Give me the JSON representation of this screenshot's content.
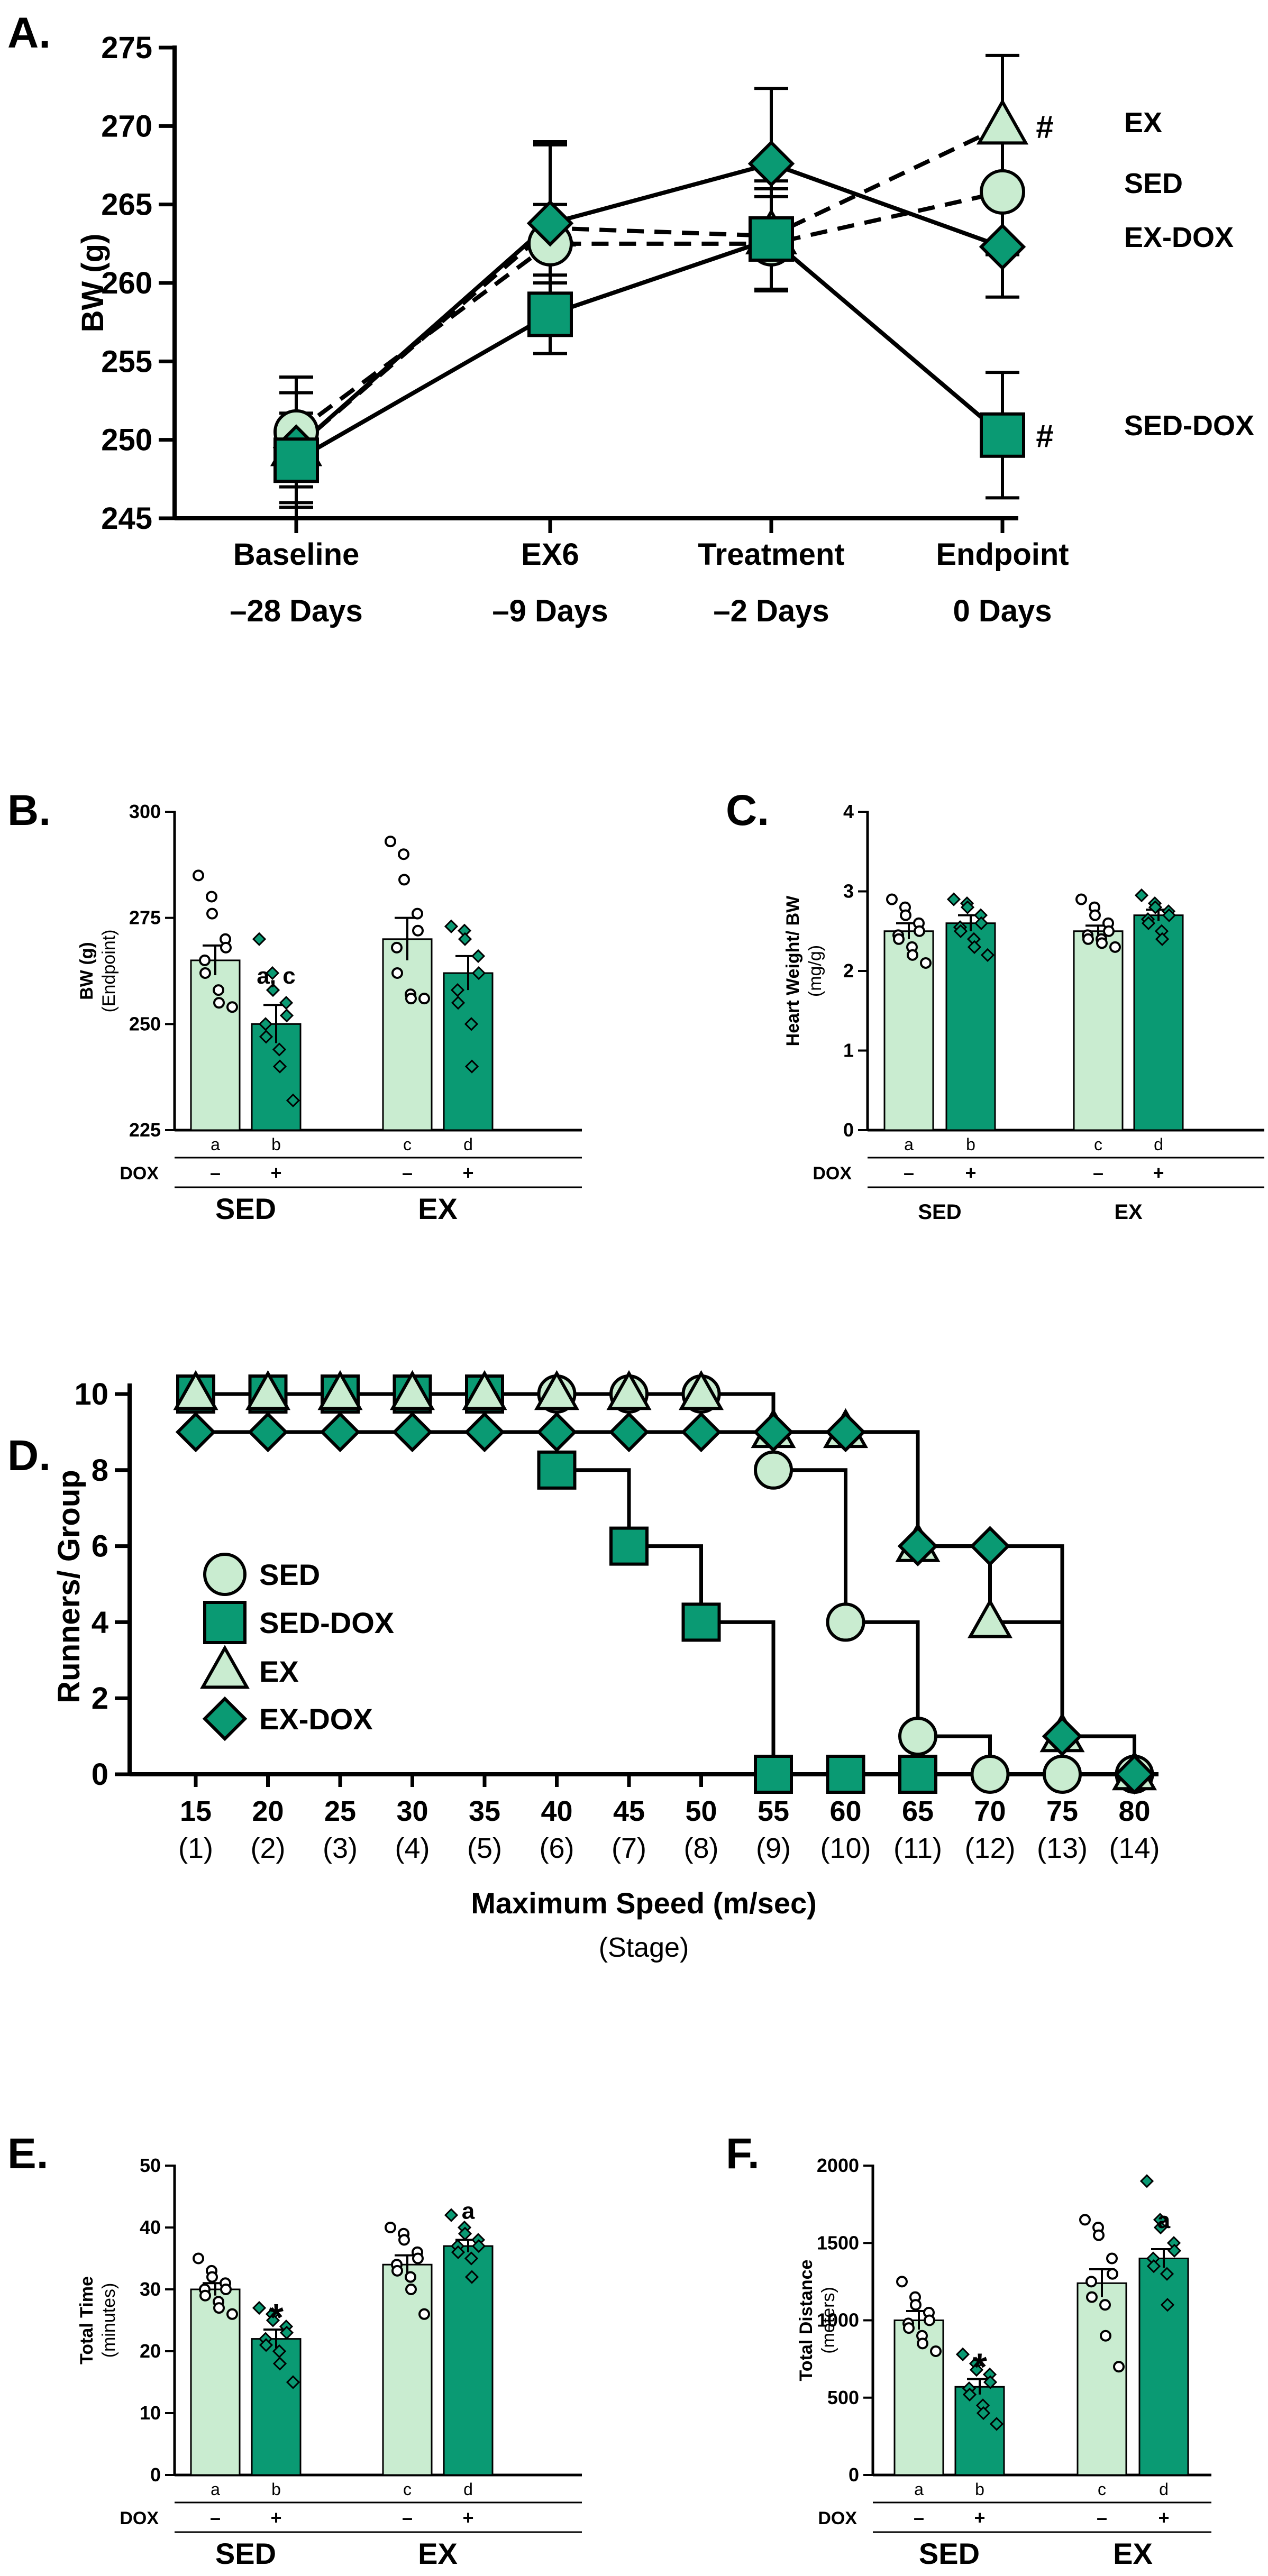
{
  "colors": {
    "light": "#c9ecd0",
    "dark": "#0a9a73",
    "ink": "#000000"
  },
  "chart_data": [
    {
      "id": "A",
      "panel_label": "A.",
      "type": "line",
      "ylabel": "BW (g)",
      "ylim": [
        245,
        275
      ],
      "yticks": [
        245,
        250,
        255,
        260,
        265,
        270,
        275
      ],
      "categories": [
        "Baseline",
        "EX6",
        "Treatment",
        "Endpoint"
      ],
      "categories_sub": [
        "–28 Days",
        "–9 Days",
        "–2 Days",
        "0 Days"
      ],
      "series": [
        {
          "name": "EX",
          "marker": "triangle",
          "fill": "light",
          "dashed": true,
          "values": [
            249.5,
            263.5,
            263.0,
            270.0
          ],
          "err": [
            4.5,
            5.5,
            3.5,
            4.5
          ],
          "annotation": "#"
        },
        {
          "name": "SED",
          "marker": "circle",
          "fill": "light",
          "dashed": true,
          "values": [
            250.5,
            262.5,
            262.5,
            265.8
          ],
          "err": [
            3.5,
            2.5,
            3.0,
            4.0
          ],
          "annotation": ""
        },
        {
          "name": "EX-DOX",
          "marker": "diamond",
          "fill": "dark",
          "dashed": false,
          "values": [
            249.5,
            263.8,
            267.6,
            262.3
          ],
          "err": [
            3.5,
            5.0,
            4.8,
            3.2
          ],
          "annotation": ""
        },
        {
          "name": "SED-DOX",
          "marker": "square",
          "fill": "dark",
          "dashed": false,
          "values": [
            248.7,
            258.0,
            262.8,
            250.3
          ],
          "err": [
            3.0,
            2.5,
            3.2,
            4.0
          ],
          "annotation": "#"
        }
      ]
    },
    {
      "id": "B",
      "panel_label": "B.",
      "type": "bar",
      "ylabel": "BW (g)",
      "ylabel2": "(Endpoint)",
      "ylim": [
        225,
        300
      ],
      "yticks": [
        225,
        250,
        275,
        300
      ],
      "bars": [
        {
          "name": "SED",
          "value": 265,
          "err": 3.5,
          "fill": "light",
          "letter": "a",
          "dox": "–",
          "points": [
            285,
            280,
            276,
            270,
            268,
            265,
            262,
            258,
            255,
            254
          ],
          "annotation": ""
        },
        {
          "name": "SED-DOX",
          "value": 250,
          "err": 4.5,
          "fill": "dark",
          "letter": "b",
          "dox": "+",
          "points": [
            270,
            262,
            258,
            255,
            252,
            250,
            247,
            244,
            240,
            232
          ],
          "annotation": "a, c"
        },
        {
          "name": "EX",
          "value": 270,
          "err": 5.0,
          "fill": "light",
          "letter": "c",
          "dox": "–",
          "points": [
            293,
            290,
            284,
            276,
            272,
            268,
            262,
            257,
            256,
            256
          ],
          "annotation": ""
        },
        {
          "name": "EX-DOX",
          "value": 262,
          "err": 4.0,
          "fill": "dark",
          "letter": "d",
          "dox": "+",
          "points": [
            273,
            272,
            270,
            266,
            262,
            258,
            255,
            250,
            240
          ],
          "annotation": ""
        }
      ],
      "row_label": "DOX",
      "groups": [
        "SED",
        "EX"
      ]
    },
    {
      "id": "C",
      "panel_label": "C.",
      "type": "bar",
      "ylabel": "Heart Weight/ BW",
      "ylabel2": "(mg/g)",
      "ylim": [
        0,
        4
      ],
      "yticks": [
        0,
        1,
        2,
        3,
        4
      ],
      "bars": [
        {
          "name": "SED",
          "value": 2.5,
          "err": 0.1,
          "fill": "light",
          "letter": "a",
          "dox": "–",
          "points": [
            2.9,
            2.8,
            2.7,
            2.6,
            2.5,
            2.45,
            2.4,
            2.3,
            2.2,
            2.1
          ],
          "annotation": ""
        },
        {
          "name": "SED-DOX",
          "value": 2.6,
          "err": 0.1,
          "fill": "dark",
          "letter": "b",
          "dox": "+",
          "points": [
            2.9,
            2.85,
            2.8,
            2.7,
            2.6,
            2.55,
            2.5,
            2.4,
            2.3,
            2.2
          ],
          "annotation": ""
        },
        {
          "name": "EX",
          "value": 2.5,
          "err": 0.07,
          "fill": "light",
          "letter": "c",
          "dox": "–",
          "points": [
            2.9,
            2.8,
            2.7,
            2.6,
            2.5,
            2.45,
            2.4,
            2.4,
            2.35,
            2.3
          ],
          "annotation": ""
        },
        {
          "name": "EX-DOX",
          "value": 2.7,
          "err": 0.07,
          "fill": "dark",
          "letter": "d",
          "dox": "+",
          "points": [
            2.95,
            2.85,
            2.8,
            2.75,
            2.7,
            2.65,
            2.6,
            2.5,
            2.4
          ],
          "annotation": ""
        }
      ],
      "row_label": "DOX",
      "groups": [
        "SED",
        "EX"
      ]
    },
    {
      "id": "D",
      "panel_label": "D.",
      "type": "line",
      "ylabel": "Runners/ Group",
      "ylim": [
        0,
        10
      ],
      "yticks": [
        0,
        2,
        4,
        6,
        8,
        10
      ],
      "xlabel": "Maximum Speed (m/sec)",
      "xlabel2": "(Stage)",
      "x": [
        15,
        20,
        25,
        30,
        35,
        40,
        45,
        50,
        55,
        60,
        65,
        70,
        75,
        80
      ],
      "x_sub": [
        "(1)",
        "(2)",
        "(3)",
        "(4)",
        "(5)",
        "(6)",
        "(7)",
        "(8)",
        "(9)",
        "(10)",
        "(11)",
        "(12)",
        "(13)",
        "(14)"
      ],
      "series": [
        {
          "name": "SED",
          "marker": "circle",
          "fill": "light",
          "points": [
            [
              15,
              10
            ],
            [
              20,
              10
            ],
            [
              25,
              10
            ],
            [
              30,
              10
            ],
            [
              35,
              10
            ],
            [
              40,
              10
            ],
            [
              45,
              10
            ],
            [
              50,
              10
            ],
            [
              55,
              8
            ],
            [
              60,
              4
            ],
            [
              65,
              1
            ],
            [
              70,
              0
            ],
            [
              75,
              0
            ],
            [
              80,
              0
            ]
          ]
        },
        {
          "name": "SED-DOX",
          "marker": "square",
          "fill": "dark",
          "points": [
            [
              15,
              10
            ],
            [
              20,
              10
            ],
            [
              25,
              10
            ],
            [
              30,
              10
            ],
            [
              35,
              10
            ],
            [
              40,
              8
            ],
            [
              45,
              6
            ],
            [
              50,
              4
            ],
            [
              55,
              0
            ],
            [
              60,
              0
            ],
            [
              65,
              0
            ]
          ]
        },
        {
          "name": "EX",
          "marker": "triangle",
          "fill": "light",
          "points": [
            [
              15,
              10
            ],
            [
              20,
              10
            ],
            [
              25,
              10
            ],
            [
              30,
              10
            ],
            [
              35,
              10
            ],
            [
              40,
              10
            ],
            [
              45,
              10
            ],
            [
              50,
              10
            ],
            [
              55,
              9
            ],
            [
              60,
              9
            ],
            [
              65,
              6
            ],
            [
              70,
              4
            ],
            [
              75,
              1
            ],
            [
              80,
              0
            ]
          ]
        },
        {
          "name": "EX-DOX",
          "marker": "diamond",
          "fill": "dark",
          "points": [
            [
              15,
              9
            ],
            [
              20,
              9
            ],
            [
              25,
              9
            ],
            [
              30,
              9
            ],
            [
              35,
              9
            ],
            [
              40,
              9
            ],
            [
              45,
              9
            ],
            [
              50,
              9
            ],
            [
              55,
              9
            ],
            [
              60,
              9
            ],
            [
              65,
              6
            ],
            [
              70,
              6
            ],
            [
              75,
              1
            ],
            [
              80,
              0
            ]
          ]
        }
      ],
      "legend": [
        "SED",
        "SED-DOX",
        "EX",
        "EX-DOX"
      ]
    },
    {
      "id": "E",
      "panel_label": "E.",
      "type": "bar",
      "ylabel": "Total Time",
      "ylabel2": "(minutes)",
      "ylim": [
        0,
        50
      ],
      "yticks": [
        0,
        10,
        20,
        30,
        40,
        50
      ],
      "bars": [
        {
          "name": "SED",
          "value": 30,
          "err": 1.0,
          "fill": "light",
          "letter": "a",
          "dox": "–",
          "points": [
            35,
            33,
            32,
            31,
            30,
            30,
            29,
            28,
            27,
            26
          ],
          "annotation": ""
        },
        {
          "name": "SED-DOX",
          "value": 22,
          "err": 1.5,
          "fill": "dark",
          "letter": "b",
          "dox": "+",
          "points": [
            27,
            26,
            25,
            24,
            23,
            22,
            21,
            20,
            18,
            15
          ],
          "annotation": "*"
        },
        {
          "name": "EX",
          "value": 34,
          "err": 1.5,
          "fill": "light",
          "letter": "c",
          "dox": "–",
          "points": [
            40,
            39,
            38,
            36,
            35,
            34,
            33,
            32,
            30,
            26
          ],
          "annotation": ""
        },
        {
          "name": "EX-DOX",
          "value": 37,
          "err": 1.0,
          "fill": "dark",
          "letter": "d",
          "dox": "+",
          "points": [
            42,
            40,
            39,
            38,
            37,
            37,
            36,
            35,
            32
          ],
          "annotation": "a"
        }
      ],
      "row_label": "DOX",
      "groups": [
        "SED",
        "EX"
      ]
    },
    {
      "id": "F",
      "panel_label": "F.",
      "type": "bar",
      "ylabel": "Total Distance",
      "ylabel2": "(meters)",
      "ylim": [
        0,
        2000
      ],
      "yticks": [
        0,
        500,
        1000,
        1500,
        2000
      ],
      "bars": [
        {
          "name": "SED",
          "value": 1000,
          "err": 60,
          "fill": "light",
          "letter": "a",
          "dox": "–",
          "points": [
            1250,
            1150,
            1100,
            1050,
            1000,
            980,
            950,
            900,
            850,
            800
          ],
          "annotation": ""
        },
        {
          "name": "SED-DOX",
          "value": 570,
          "err": 50,
          "fill": "dark",
          "letter": "b",
          "dox": "+",
          "points": [
            780,
            720,
            680,
            650,
            600,
            560,
            520,
            450,
            400,
            330
          ],
          "annotation": "*"
        },
        {
          "name": "EX",
          "value": 1240,
          "err": 90,
          "fill": "light",
          "letter": "c",
          "dox": "–",
          "points": [
            1650,
            1600,
            1550,
            1400,
            1300,
            1250,
            1150,
            1100,
            900,
            700
          ],
          "annotation": ""
        },
        {
          "name": "EX-DOX",
          "value": 1400,
          "err": 60,
          "fill": "dark",
          "letter": "d",
          "dox": "+",
          "points": [
            1900,
            1650,
            1600,
            1500,
            1450,
            1400,
            1350,
            1300,
            1100
          ],
          "annotation": "a"
        }
      ],
      "row_label": "DOX",
      "groups": [
        "SED",
        "EX"
      ]
    }
  ]
}
